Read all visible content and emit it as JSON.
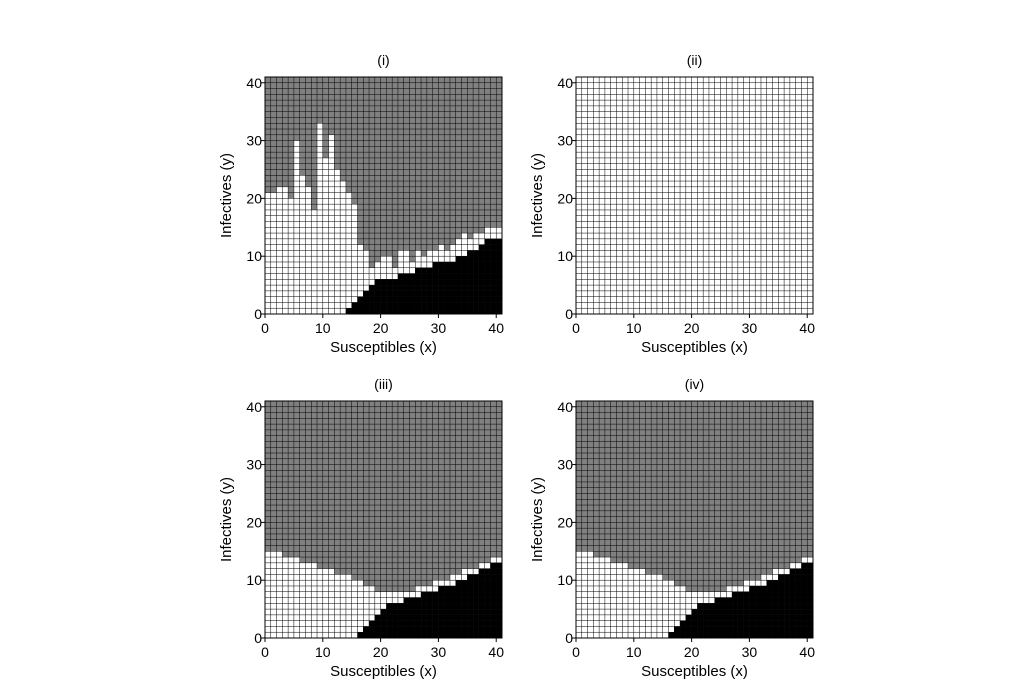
{
  "colors": {
    "white": "#ffffff",
    "gray": "#808080",
    "black": "#000000",
    "grid": "#000000"
  },
  "chart_data": [
    {
      "type": "heatmap",
      "title": "(i)",
      "xlabel": "Susceptibles (x)",
      "ylabel": "Infectives (y)",
      "xlim": [
        0,
        41
      ],
      "ylim": [
        0,
        41
      ],
      "xticks": [
        "0",
        "10",
        "20",
        "30",
        "40"
      ],
      "yticks": [
        "0",
        "10",
        "20",
        "30",
        "40"
      ],
      "grid": true,
      "boundary_note": "gray (top) y-threshold per column x=0..40; black (bottom-right) top y per column (-1 = none)",
      "gray_from_y": [
        21,
        21,
        22,
        22,
        20,
        30,
        24,
        22,
        18,
        33,
        27,
        31,
        25,
        23,
        21,
        19,
        12,
        11,
        8,
        9,
        10,
        10,
        8,
        11,
        11,
        9,
        11,
        10,
        11,
        11,
        12,
        11,
        12,
        13,
        14,
        13,
        14,
        14,
        15,
        15,
        15
      ],
      "black_to_y": [
        -1,
        -1,
        -1,
        -1,
        -1,
        -1,
        -1,
        -1,
        -1,
        -1,
        -1,
        -1,
        -1,
        -1,
        0,
        1,
        2,
        3,
        4,
        5,
        5,
        5,
        5,
        6,
        6,
        6,
        7,
        7,
        7,
        8,
        8,
        8,
        8,
        9,
        9,
        10,
        10,
        11,
        12,
        12,
        12
      ]
    },
    {
      "type": "heatmap",
      "title": "(ii)",
      "xlabel": "Susceptibles (x)",
      "ylabel": "Infectives (y)",
      "xlim": [
        0,
        41
      ],
      "ylim": [
        0,
        41
      ],
      "xticks": [
        "0",
        "10",
        "20",
        "30",
        "40"
      ],
      "yticks": [
        "0",
        "10",
        "20",
        "30",
        "40"
      ],
      "grid": true,
      "gray_from_y": [
        99,
        99,
        99,
        99,
        99,
        99,
        99,
        99,
        99,
        99,
        99,
        99,
        99,
        99,
        99,
        99,
        99,
        99,
        99,
        99,
        99,
        99,
        99,
        99,
        99,
        99,
        99,
        99,
        99,
        99,
        99,
        99,
        99,
        99,
        99,
        99,
        99,
        99,
        99,
        99,
        99
      ],
      "black_to_y": [
        -1,
        -1,
        -1,
        -1,
        -1,
        -1,
        -1,
        -1,
        -1,
        -1,
        -1,
        -1,
        -1,
        -1,
        -1,
        -1,
        -1,
        -1,
        -1,
        -1,
        -1,
        -1,
        -1,
        -1,
        -1,
        -1,
        -1,
        -1,
        -1,
        -1,
        -1,
        -1,
        -1,
        -1,
        -1,
        -1,
        -1,
        -1,
        -1,
        -1,
        -1
      ]
    },
    {
      "type": "heatmap",
      "title": "(iii)",
      "xlabel": "Susceptibles (x)",
      "ylabel": "Infectives (y)",
      "xlim": [
        0,
        41
      ],
      "ylim": [
        0,
        41
      ],
      "xticks": [
        "0",
        "10",
        "20",
        "30",
        "40"
      ],
      "yticks": [
        "0",
        "10",
        "20",
        "30",
        "40"
      ],
      "grid": true,
      "gray_from_y": [
        15,
        15,
        15,
        14,
        14,
        14,
        13,
        13,
        13,
        12,
        12,
        12,
        11,
        11,
        11,
        10,
        10,
        9,
        9,
        8,
        8,
        8,
        8,
        8,
        8,
        8,
        9,
        9,
        9,
        10,
        10,
        10,
        11,
        11,
        12,
        12,
        12,
        13,
        13,
        14,
        14
      ],
      "black_to_y": [
        -1,
        -1,
        -1,
        -1,
        -1,
        -1,
        -1,
        -1,
        -1,
        -1,
        -1,
        -1,
        -1,
        -1,
        -1,
        -1,
        0,
        1,
        2,
        3,
        4,
        5,
        5,
        5,
        6,
        6,
        6,
        7,
        7,
        7,
        8,
        8,
        8,
        9,
        9,
        10,
        10,
        11,
        11,
        12,
        12
      ]
    },
    {
      "type": "heatmap",
      "title": "(iv)",
      "xlabel": "Susceptibles (x)",
      "ylabel": "Infectives (y)",
      "xlim": [
        0,
        41
      ],
      "ylim": [
        0,
        41
      ],
      "xticks": [
        "0",
        "10",
        "20",
        "30",
        "40"
      ],
      "yticks": [
        "0",
        "10",
        "20",
        "30",
        "40"
      ],
      "grid": true,
      "gray_from_y": [
        15,
        15,
        15,
        14,
        14,
        14,
        13,
        13,
        13,
        12,
        12,
        12,
        11,
        11,
        11,
        10,
        10,
        9,
        9,
        8,
        8,
        8,
        8,
        8,
        8,
        8,
        9,
        9,
        9,
        10,
        10,
        10,
        11,
        11,
        12,
        12,
        12,
        13,
        13,
        14,
        14
      ],
      "black_to_y": [
        -1,
        -1,
        -1,
        -1,
        -1,
        -1,
        -1,
        -1,
        -1,
        -1,
        -1,
        -1,
        -1,
        -1,
        -1,
        -1,
        0,
        1,
        2,
        3,
        4,
        5,
        5,
        5,
        6,
        6,
        6,
        7,
        7,
        7,
        8,
        8,
        8,
        9,
        9,
        10,
        10,
        11,
        11,
        12,
        12
      ]
    }
  ]
}
